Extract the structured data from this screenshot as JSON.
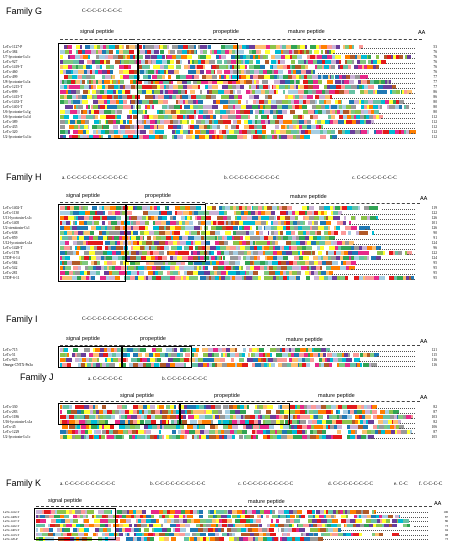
{
  "families": [
    {
      "id": "G",
      "title": "Family G",
      "motifs": [
        "C-C-C-C-C-C-C-C"
      ],
      "labels": {
        "signal": "signal peptide",
        "pro": "propeptide",
        "mature": "mature peptide",
        "aa": "AA"
      },
      "sequences": [
        "LeTx-1127-P",
        "LeTx-384",
        "U7-lycotoxin-Ls1c",
        "LeTx-927",
        "LeTx-1419-T",
        "LeTx-460",
        "LeTx-499",
        "U8-lycotoxin-Ls1a",
        "LeTx-1215-T",
        "LeTx-899",
        "LeTx-1415-T",
        "LeTx-1433-T",
        "LeTx-1401-T",
        "U6-lycotoxin-Ls1g",
        "U6-lycotoxin-Ls1d",
        "LeTx-389",
        "LeTx-435",
        "LeTx-320",
        "U2-lycotoxin-Ls1ic"
      ],
      "lengths": [
        "53",
        "76",
        "76",
        "76",
        "76",
        "76",
        "77",
        "77",
        "77",
        "86",
        "86",
        "80",
        "80",
        "80",
        "112",
        "112",
        "112",
        "112",
        "112"
      ]
    },
    {
      "id": "H",
      "title": "Family H",
      "motifs": [
        "a. C-C-C-C-C-C-C-C-C-C-C-C",
        "b. C-C-C-C-C-C-C-C-C-C",
        "c. C-C-C-C-C-C-C-C"
      ],
      "labels": {
        "signal": "signal peptide",
        "pro": "propeptide",
        "mature": "mature peptide",
        "aa": "AA"
      },
      "sequences": [
        "LeTx-1402-T",
        "LeTx-1130",
        "U11-lycotoxin-Ls1c",
        "LeTx-1405",
        "U2-ctenitoxin-Cs1",
        "LeTx-638",
        "LeTx-859",
        "U12-lycotoxin-Ls1a",
        "LeTx-1428-T",
        "LeTx-1178",
        "LTDF-S-14",
        "LeTx-584",
        "LeTx-542",
        "LeTx-281",
        "LTDF-S-11"
      ],
      "lengths": [
        "119",
        "122",
        "126",
        "101",
        "126",
        "90",
        "91",
        "124",
        "96",
        "122",
        "124",
        "95",
        "95",
        "95",
        "95"
      ]
    },
    {
      "id": "I",
      "title": "Family I",
      "motifs": [
        "C-C-C-C-C-C-C-C-C-C-C-C-C-C"
      ],
      "labels": {
        "signal": "signal peptide",
        "pro": "propeptide",
        "mature": "mature peptide",
        "aa": "AA"
      },
      "sequences": [
        "LeTx-715",
        "LeTx-51",
        "LeTx-925",
        "Omega-CNTX-Pn3a"
      ],
      "lengths": [
        "121",
        "115",
        "116",
        "116"
      ]
    },
    {
      "id": "J",
      "title": "Family J",
      "motifs": [
        "a. C-C-C-C-C-C",
        "b. C-C-C-C-C-C-C-C"
      ],
      "labels": {
        "signal": "signal peptide",
        "pro": "propeptide",
        "mature": "mature peptide",
        "aa": "AA"
      },
      "sequences": [
        "LeTx-330",
        "LeTx-283",
        "LeTx-1186",
        "U16-lycotoxin-Ls1a",
        "LeTx-45",
        "LeTx-1229",
        "U2-lycotoxin-Ls1c"
      ],
      "lengths": [
        "82",
        "87",
        "103",
        "82",
        "106",
        "87",
        "105"
      ]
    },
    {
      "id": "K",
      "title": "Family K",
      "motifs": [
        "a. C-C-C-C-C-C-C-C-C-C",
        "b. C-C-C-C-C-C-C-C-C-C",
        "c. C-C-C-C-C-C-C-C-C-C",
        "d. C-C-C-C-C-C-C-C",
        "e. C-C",
        "f. C-C-C-C"
      ],
      "labels": {
        "signal": "signal peptide",
        "mature": "mature peptide",
        "aa": "AA"
      },
      "sequences": [
        "LeTx-1412-T",
        "LeTx-1408-T",
        "LeTx-1417-T",
        "LeTx-1422-T",
        "LeTx-1403-T",
        "LeTx-1413-T",
        "LeTx-120-P"
      ],
      "lengths": [
        "106",
        "87",
        "86",
        "73",
        "94",
        "98",
        "73"
      ]
    }
  ],
  "residue_colors": [
    "#31a354",
    "#7fc97f",
    "#1f78b4",
    "#a6cee3",
    "#e31a1c",
    "#fb9a99",
    "#ff7f00",
    "#fdbf6f",
    "#6a3d9a",
    "#cab2d6",
    "#b15928",
    "#ffff33",
    "#66c2a5",
    "#e7298a",
    "#999999",
    "#00bcd4",
    "#8bc34a"
  ]
}
